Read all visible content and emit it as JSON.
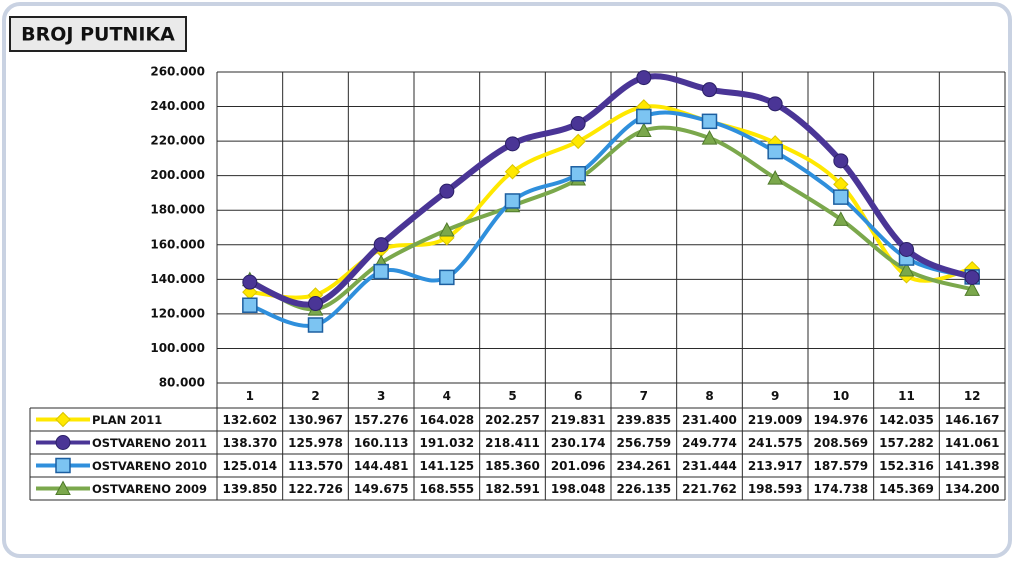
{
  "chart_data": {
    "type": "line",
    "title": "BROJ PUTNIKA",
    "categories": [
      "1",
      "2",
      "3",
      "4",
      "5",
      "6",
      "7",
      "8",
      "9",
      "10",
      "11",
      "12"
    ],
    "ylim": [
      80000,
      260000
    ],
    "yticks": [
      {
        "value": 80000,
        "label": "80.000"
      },
      {
        "value": 100000,
        "label": "100.000"
      },
      {
        "value": 120000,
        "label": "120.000"
      },
      {
        "value": 140000,
        "label": "140.000"
      },
      {
        "value": 160000,
        "label": "160.000"
      },
      {
        "value": 180000,
        "label": "180.000"
      },
      {
        "value": 200000,
        "label": "200.000"
      },
      {
        "value": 220000,
        "label": "220.000"
      },
      {
        "value": 240000,
        "label": "240.000"
      },
      {
        "value": 260000,
        "label": "260.000"
      }
    ],
    "grid": true,
    "series": [
      {
        "name": "PLAN 2011",
        "color": "#ffe800",
        "marker": "diamond",
        "values": [
          132602,
          130967,
          157276,
          164028,
          202257,
          219831,
          239835,
          231400,
          219009,
          194976,
          142035,
          146167
        ],
        "value_labels": [
          "132.602",
          "130.967",
          "157.276",
          "164.028",
          "202.257",
          "219.831",
          "239.835",
          "231.400",
          "219.009",
          "194.976",
          "142.035",
          "146.167"
        ]
      },
      {
        "name": "OSTVARENO 2011",
        "color": "#4a3596",
        "marker": "circle",
        "values": [
          138370,
          125978,
          160113,
          191032,
          218411,
          230174,
          256759,
          249774,
          241575,
          208569,
          157282,
          141061
        ],
        "value_labels": [
          "138.370",
          "125.978",
          "160.113",
          "191.032",
          "218.411",
          "230.174",
          "256.759",
          "249.774",
          "241.575",
          "208.569",
          "157.282",
          "141.061"
        ]
      },
      {
        "name": "OSTVARENO 2010",
        "color": "#2f8fdc",
        "marker": "square",
        "values": [
          125014,
          113570,
          144481,
          141125,
          185360,
          201096,
          234261,
          231444,
          213917,
          187579,
          152316,
          141398
        ],
        "value_labels": [
          "125.014",
          "113.570",
          "144.481",
          "141.125",
          "185.360",
          "201.096",
          "234.261",
          "231.444",
          "213.917",
          "187.579",
          "152.316",
          "141.398"
        ]
      },
      {
        "name": "OSTVARENO 2009",
        "color": "#7ba84c",
        "marker": "triangle",
        "values": [
          139850,
          122726,
          149675,
          168555,
          182591,
          198048,
          226135,
          221762,
          198593,
          174738,
          145369,
          134200
        ],
        "value_labels": [
          "139.850",
          "122.726",
          "149.675",
          "168.555",
          "182.591",
          "198.048",
          "226.135",
          "221.762",
          "198.593",
          "174.738",
          "145.369",
          "134.200"
        ]
      }
    ]
  }
}
